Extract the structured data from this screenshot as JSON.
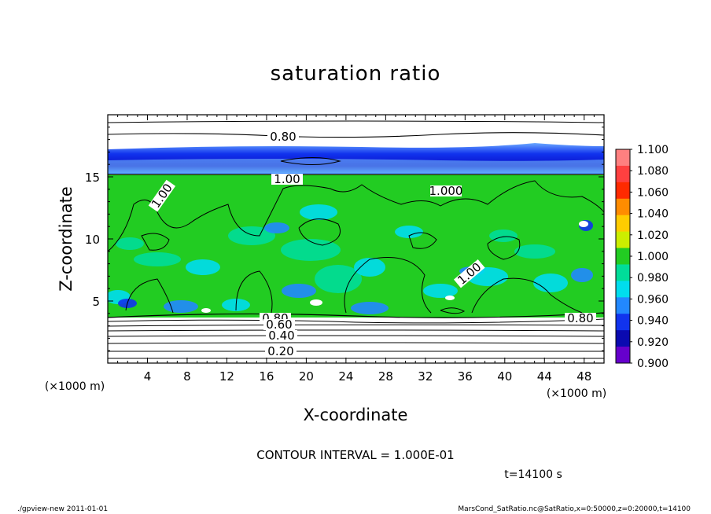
{
  "chart_data": {
    "type": "heatmap",
    "title": "saturation ratio",
    "xlabel": "X-coordinate",
    "ylabel": "Z-coordinate",
    "x_unit": "(×1000 m)",
    "z_unit": "(×1000 m)",
    "xlim": [
      0,
      50
    ],
    "ylim": [
      0,
      20
    ],
    "x_ticks": [
      "4",
      "8",
      "12",
      "16",
      "20",
      "24",
      "28",
      "32",
      "36",
      "40",
      "44",
      "48"
    ],
    "y_ticks": [
      "5",
      "10",
      "15"
    ],
    "colorbar": {
      "levels": [
        "1.100",
        "1.080",
        "1.060",
        "1.040",
        "1.020",
        "1.000",
        "0.980",
        "0.960",
        "0.940",
        "0.920",
        "0.900"
      ],
      "colors": [
        "#ff8080",
        "#ff4040",
        "#ff2a00",
        "#ff8c00",
        "#ffcc00",
        "#ccee00",
        "#22cc22",
        "#00dd99",
        "#00ddee",
        "#2288ff",
        "#1133ee",
        "#0a0ab0",
        "#6600cc"
      ]
    },
    "contour_labels": [
      "0.80",
      "1.00",
      "1.00",
      "1.000",
      "1.00",
      "0.80",
      "0.60",
      "0.40",
      "0.20",
      "0.80"
    ],
    "contour_interval": "CONTOUR INTERVAL = 1.000E-01",
    "time_label": "t=14100 s",
    "grid": false
  },
  "footer": {
    "left": "./gpview-new  2011-01-01",
    "right": "MarsCond_SatRatio.nc@SatRatio,x=0:50000,z=0:20000,t=14100"
  }
}
